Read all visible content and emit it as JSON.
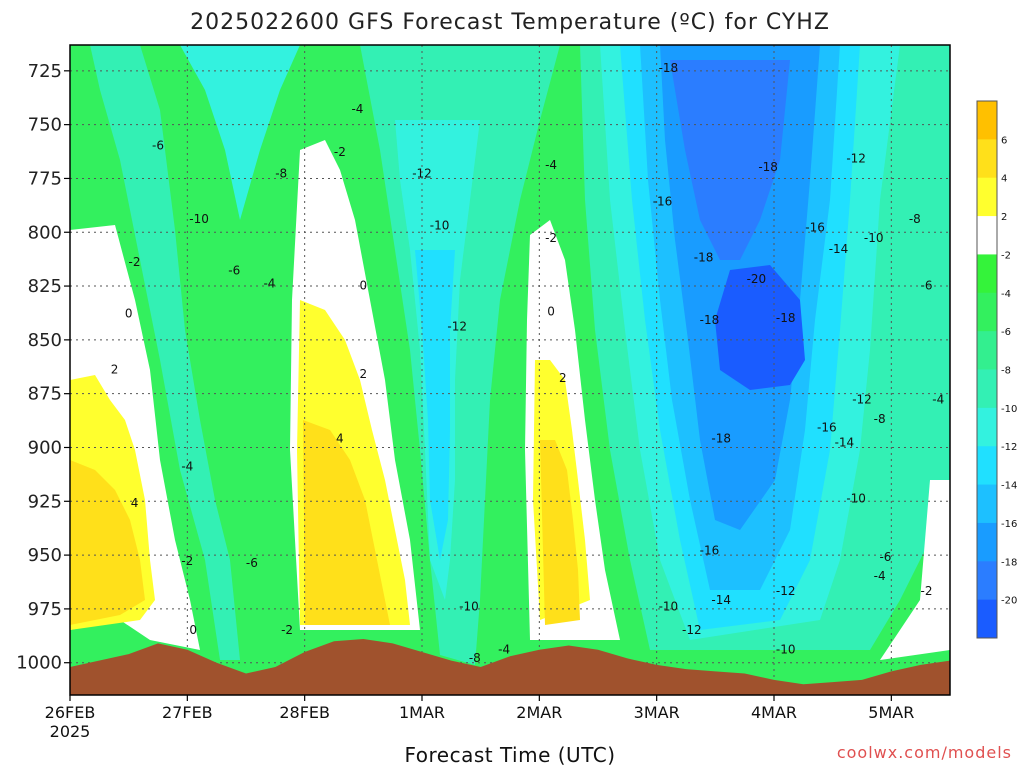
{
  "chart_data": {
    "type": "heatmap",
    "title": "2025022600 GFS Forecast Temperature (ºC) for CYHZ",
    "xlabel": "Forecast Time (UTC)",
    "ylabel": "",
    "x_ticks": [
      "26FEB",
      "27FEB",
      "28FEB",
      "1MAR",
      "2MAR",
      "3MAR",
      "4MAR",
      "5MAR"
    ],
    "x_tick_days": [
      0,
      1,
      2,
      3,
      4,
      5,
      6,
      7
    ],
    "x_year": "2025",
    "xlim_days": [
      0,
      7.5
    ],
    "y_ticks": [
      "725",
      "750",
      "775",
      "800",
      "825",
      "850",
      "875",
      "900",
      "925",
      "950",
      "975",
      "1000"
    ],
    "y_tick_values": [
      725,
      750,
      775,
      800,
      825,
      850,
      875,
      900,
      925,
      950,
      975,
      1000
    ],
    "ylim": [
      1015,
      713
    ],
    "y_scale": "pressure (inverted)",
    "grid": true,
    "colorbar": {
      "placement": "right",
      "levels": [
        -22,
        -20,
        -18,
        -16,
        -14,
        -12,
        -10,
        -8,
        -6,
        -4,
        -2,
        2,
        4,
        6,
        8
      ],
      "colors": [
        "#1a5cff",
        "#2b7dff",
        "#199cff",
        "#1dc0ff",
        "#20e0ff",
        "#33f2df",
        "#33f0b4",
        "#33ef8f",
        "#33f05e",
        "#34f33a",
        "#ffffff",
        "#ffff2e",
        "#ffe01a",
        "#ffc000"
      ],
      "tick_labels": [
        "6",
        "4",
        "2",
        "-2",
        "-4",
        "-6",
        "-8",
        "-10",
        "-12",
        "-14",
        "-16",
        "-18",
        "-20"
      ]
    },
    "surface_color": "#a0522d",
    "surface_pressure": [
      {
        "day": 0.0,
        "p": 1002
      },
      {
        "day": 0.5,
        "p": 996
      },
      {
        "day": 0.75,
        "p": 991
      },
      {
        "day": 1.0,
        "p": 994
      },
      {
        "day": 1.25,
        "p": 1000
      },
      {
        "day": 1.5,
        "p": 1005
      },
      {
        "day": 1.75,
        "p": 1002
      },
      {
        "day": 2.0,
        "p": 995
      },
      {
        "day": 2.25,
        "p": 990
      },
      {
        "day": 2.5,
        "p": 989
      },
      {
        "day": 2.75,
        "p": 991
      },
      {
        "day": 3.0,
        "p": 995
      },
      {
        "day": 3.25,
        "p": 999
      },
      {
        "day": 3.5,
        "p": 1002
      },
      {
        "day": 3.75,
        "p": 997
      },
      {
        "day": 4.0,
        "p": 994
      },
      {
        "day": 4.25,
        "p": 992
      },
      {
        "day": 4.5,
        "p": 994
      },
      {
        "day": 4.75,
        "p": 998
      },
      {
        "day": 5.0,
        "p": 1001
      },
      {
        "day": 5.25,
        "p": 1003
      },
      {
        "day": 5.5,
        "p": 1004
      },
      {
        "day": 5.75,
        "p": 1005
      },
      {
        "day": 6.0,
        "p": 1008
      },
      {
        "day": 6.25,
        "p": 1010
      },
      {
        "day": 6.5,
        "p": 1009
      },
      {
        "day": 6.75,
        "p": 1008
      },
      {
        "day": 7.0,
        "p": 1004
      },
      {
        "day": 7.25,
        "p": 1001
      },
      {
        "day": 7.5,
        "p": 999
      }
    ],
    "contour_labels": [
      {
        "text": "-18",
        "day": 5.1,
        "p": 724
      },
      {
        "text": "-4",
        "day": 2.45,
        "p": 743
      },
      {
        "text": "-6",
        "day": 0.75,
        "p": 760
      },
      {
        "text": "-2",
        "day": 2.3,
        "p": 763
      },
      {
        "text": "-12",
        "day": 6.7,
        "p": 766
      },
      {
        "text": "-4",
        "day": 4.1,
        "p": 769
      },
      {
        "text": "-8",
        "day": 1.8,
        "p": 773
      },
      {
        "text": "-12",
        "day": 3.0,
        "p": 773
      },
      {
        "text": "-18",
        "day": 5.95,
        "p": 770
      },
      {
        "text": "-16",
        "day": 5.05,
        "p": 786
      },
      {
        "text": "-10",
        "day": 1.1,
        "p": 794
      },
      {
        "text": "-10",
        "day": 3.15,
        "p": 797
      },
      {
        "text": "-8",
        "day": 7.2,
        "p": 794
      },
      {
        "text": "-16",
        "day": 6.35,
        "p": 798
      },
      {
        "text": "-2",
        "day": 4.1,
        "p": 803
      },
      {
        "text": "-10",
        "day": 6.85,
        "p": 803
      },
      {
        "text": "-14",
        "day": 6.55,
        "p": 808
      },
      {
        "text": "-2",
        "day": 0.55,
        "p": 814
      },
      {
        "text": "-18",
        "day": 5.4,
        "p": 812
      },
      {
        "text": "-6",
        "day": 1.4,
        "p": 818
      },
      {
        "text": "-20",
        "day": 5.85,
        "p": 822
      },
      {
        "text": "-4",
        "day": 1.7,
        "p": 824
      },
      {
        "text": "0",
        "day": 2.5,
        "p": 825
      },
      {
        "text": "-6",
        "day": 7.3,
        "p": 825
      },
      {
        "text": "0",
        "day": 0.5,
        "p": 838
      },
      {
        "text": "0",
        "day": 4.1,
        "p": 837
      },
      {
        "text": "-18",
        "day": 5.45,
        "p": 841
      },
      {
        "text": "-18",
        "day": 6.1,
        "p": 840
      },
      {
        "text": "-12",
        "day": 3.3,
        "p": 844
      },
      {
        "text": "2",
        "day": 0.38,
        "p": 864
      },
      {
        "text": "2",
        "day": 2.5,
        "p": 866
      },
      {
        "text": "2",
        "day": 4.2,
        "p": 868
      },
      {
        "text": "-12",
        "day": 6.75,
        "p": 878
      },
      {
        "text": "-4",
        "day": 7.4,
        "p": 878
      },
      {
        "text": "-8",
        "day": 6.9,
        "p": 887
      },
      {
        "text": "-16",
        "day": 6.45,
        "p": 891
      },
      {
        "text": "4",
        "day": 2.3,
        "p": 896
      },
      {
        "text": "-18",
        "day": 5.55,
        "p": 896
      },
      {
        "text": "-14",
        "day": 6.6,
        "p": 898
      },
      {
        "text": "-4",
        "day": 1.0,
        "p": 909
      },
      {
        "text": "4",
        "day": 0.55,
        "p": 926
      },
      {
        "text": "-10",
        "day": 6.7,
        "p": 924
      },
      {
        "text": "-16",
        "day": 5.45,
        "p": 948
      },
      {
        "text": "-6",
        "day": 6.95,
        "p": 951
      },
      {
        "text": "-2",
        "day": 1.0,
        "p": 953
      },
      {
        "text": "-6",
        "day": 1.55,
        "p": 954
      },
      {
        "text": "-4",
        "day": 6.9,
        "p": 960
      },
      {
        "text": "-12",
        "day": 6.1,
        "p": 967
      },
      {
        "text": "-2",
        "day": 7.3,
        "p": 967
      },
      {
        "text": "-14",
        "day": 5.55,
        "p": 971
      },
      {
        "text": "-10",
        "day": 3.4,
        "p": 974
      },
      {
        "text": "-10",
        "day": 5.1,
        "p": 974
      },
      {
        "text": "0",
        "day": 1.05,
        "p": 985
      },
      {
        "text": "-2",
        "day": 1.85,
        "p": 985
      },
      {
        "text": "-12",
        "day": 5.3,
        "p": 985
      },
      {
        "text": "-10",
        "day": 6.1,
        "p": 994
      },
      {
        "text": "-8",
        "day": 3.45,
        "p": 998
      },
      {
        "text": "-4",
        "day": 3.7,
        "p": 994
      }
    ]
  },
  "credit": "coolwx.com/models"
}
